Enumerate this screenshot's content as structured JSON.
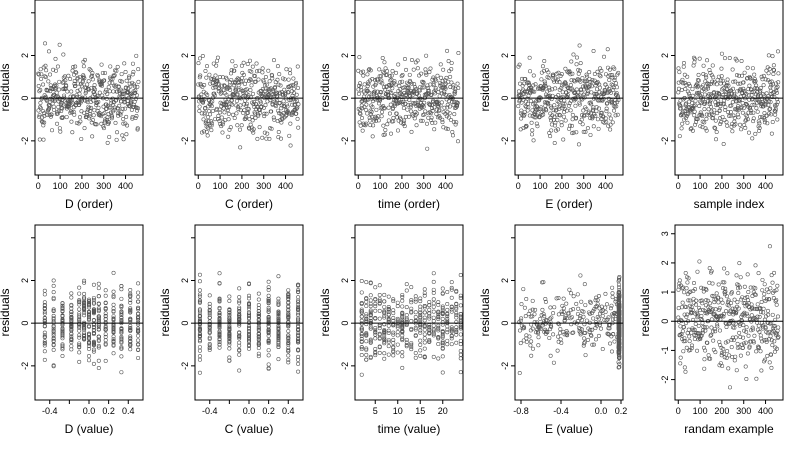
{
  "figure": {
    "ylabel": "residuals",
    "colors": {
      "background": "#ffffff",
      "axis": "#000000",
      "point": "#555555",
      "zero_line": "#000000"
    }
  },
  "chart_data": [
    {
      "type": "scatter",
      "title": "",
      "xlabel": "D (order)",
      "ylabel": "residuals",
      "xlim": [
        -15,
        480
      ],
      "ylim": [
        -3.6,
        4.6
      ],
      "xticks": [
        0,
        100,
        200,
        300,
        400
      ],
      "xtick_labels": [
        "0",
        "100",
        "200",
        "300",
        "400"
      ],
      "yticks": [
        -2,
        0,
        2,
        4
      ],
      "ytick_labels": [
        "-2",
        "0",
        "2",
        ""
      ],
      "reference_line_y": 0,
      "grid": false,
      "n_points": 460,
      "x_kind": "index"
    },
    {
      "type": "scatter",
      "title": "",
      "xlabel": "C (order)",
      "ylabel": "residuals",
      "xlim": [
        -15,
        480
      ],
      "ylim": [
        -3.6,
        4.6
      ],
      "xticks": [
        0,
        100,
        200,
        300,
        400
      ],
      "xtick_labels": [
        "0",
        "100",
        "200",
        "300",
        "400"
      ],
      "yticks": [
        -2,
        0,
        2,
        4
      ],
      "ytick_labels": [
        "-2",
        "0",
        "2",
        ""
      ],
      "reference_line_y": 0,
      "grid": false,
      "n_points": 460,
      "x_kind": "index"
    },
    {
      "type": "scatter",
      "title": "",
      "xlabel": "time (order)",
      "ylabel": "residuals",
      "xlim": [
        -15,
        480
      ],
      "ylim": [
        -3.6,
        4.6
      ],
      "xticks": [
        0,
        100,
        200,
        300,
        400
      ],
      "xtick_labels": [
        "0",
        "100",
        "200",
        "300",
        "400"
      ],
      "yticks": [
        -2,
        0,
        2,
        4
      ],
      "ytick_labels": [
        "-2",
        "0",
        "2",
        ""
      ],
      "reference_line_y": 0,
      "grid": false,
      "n_points": 460,
      "x_kind": "index"
    },
    {
      "type": "scatter",
      "title": "",
      "xlabel": "E (order)",
      "ylabel": "residuals",
      "xlim": [
        -15,
        480
      ],
      "ylim": [
        -3.6,
        4.6
      ],
      "xticks": [
        0,
        100,
        200,
        300,
        400
      ],
      "xtick_labels": [
        "0",
        "100",
        "200",
        "300",
        "400"
      ],
      "yticks": [
        -2,
        0,
        2,
        4
      ],
      "ytick_labels": [
        "-2",
        "0",
        "2",
        ""
      ],
      "reference_line_y": 0,
      "grid": false,
      "n_points": 460,
      "x_kind": "index"
    },
    {
      "type": "scatter",
      "title": "",
      "xlabel": "sample index",
      "ylabel": "residuals",
      "xlim": [
        -15,
        480
      ],
      "ylim": [
        -3.6,
        4.6
      ],
      "xticks": [
        0,
        100,
        200,
        300,
        400
      ],
      "xtick_labels": [
        "0",
        "100",
        "200",
        "300",
        "400"
      ],
      "yticks": [
        -2,
        0,
        2,
        4
      ],
      "ytick_labels": [
        "-2",
        "0",
        "2",
        ""
      ],
      "reference_line_y": 0,
      "grid": false,
      "n_points": 460,
      "x_kind": "index"
    },
    {
      "type": "scatter",
      "title": "",
      "xlabel": "D (value)",
      "ylabel": "residuals",
      "xlim": [
        -0.55,
        0.55
      ],
      "ylim": [
        -3.6,
        4.6
      ],
      "xticks": [
        -0.4,
        -0.2,
        0.0,
        0.2,
        0.4
      ],
      "xtick_labels": [
        "-0.4",
        "",
        "0.0",
        "0.2",
        "0.4"
      ],
      "yticks": [
        -2,
        0,
        2,
        4
      ],
      "ytick_labels": [
        "-2",
        "0",
        "2",
        ""
      ],
      "reference_line_y": 0,
      "grid": false,
      "n_points": 460,
      "x_kind": "discrete",
      "x_levels": [
        -0.45,
        -0.36,
        -0.27,
        -0.18,
        -0.1,
        -0.05,
        0.0,
        0.05,
        0.1,
        0.17,
        0.25,
        0.33,
        0.42,
        0.5
      ]
    },
    {
      "type": "scatter",
      "title": "",
      "xlabel": "C (value)",
      "ylabel": "residuals",
      "xlim": [
        -0.55,
        0.55
      ],
      "ylim": [
        -3.6,
        4.6
      ],
      "xticks": [
        -0.4,
        -0.2,
        0.0,
        0.2,
        0.4
      ],
      "xtick_labels": [
        "-0.4",
        "",
        "0.0",
        "0.2",
        "0.4"
      ],
      "yticks": [
        -2,
        0,
        2,
        4
      ],
      "ytick_labels": [
        "-2",
        "0",
        "2",
        ""
      ],
      "reference_line_y": 0,
      "grid": false,
      "n_points": 460,
      "x_kind": "discrete",
      "x_levels": [
        -0.5,
        -0.4,
        -0.3,
        -0.2,
        -0.1,
        0.0,
        0.1,
        0.2,
        0.3,
        0.4,
        0.5
      ]
    },
    {
      "type": "scatter",
      "title": "",
      "xlabel": "time (value)",
      "ylabel": "residuals",
      "xlim": [
        0.5,
        24.5
      ],
      "ylim": [
        -3.6,
        4.6
      ],
      "xticks": [
        5,
        10,
        15,
        20
      ],
      "xtick_labels": [
        "5",
        "10",
        "15",
        "20"
      ],
      "yticks": [
        -2,
        0,
        2,
        4
      ],
      "ytick_labels": [
        "-2",
        "0",
        "2",
        ""
      ],
      "reference_line_y": 0,
      "grid": false,
      "n_points": 460,
      "x_kind": "discrete",
      "x_levels": [
        2,
        3,
        4,
        5,
        6,
        7,
        8,
        9,
        10,
        11,
        12,
        13,
        14,
        15,
        16,
        17,
        18,
        19,
        20,
        21,
        22,
        23,
        24
      ]
    },
    {
      "type": "scatter",
      "title": "",
      "xlabel": "E (value)",
      "ylabel": "residuals",
      "xlim": [
        -0.86,
        0.22
      ],
      "ylim": [
        -3.6,
        4.6
      ],
      "xticks": [
        -0.8,
        -0.4,
        0.0,
        0.2
      ],
      "xtick_labels": [
        "-0.8",
        "-0.4",
        "0.0",
        "0.2"
      ],
      "yticks": [
        -2,
        0,
        2,
        4
      ],
      "ytick_labels": [
        "-2",
        "0",
        "2",
        ""
      ],
      "reference_line_y": 0,
      "grid": false,
      "n_points": 460,
      "x_kind": "skewed"
    },
    {
      "type": "scatter",
      "title": "",
      "xlabel": "randam example",
      "ylabel": "residuals",
      "xlim": [
        -15,
        480
      ],
      "ylim": [
        -2.7,
        3.3
      ],
      "xticks": [
        0,
        100,
        200,
        300,
        400
      ],
      "xtick_labels": [
        "0",
        "100",
        "200",
        "300",
        "400"
      ],
      "yticks": [
        -2,
        -1,
        0,
        1,
        2,
        3
      ],
      "ytick_labels": [
        "-2",
        "-1",
        "0",
        "1",
        "2",
        "3"
      ],
      "reference_line_y": 0,
      "grid": false,
      "n_points": 460,
      "x_kind": "index"
    }
  ]
}
